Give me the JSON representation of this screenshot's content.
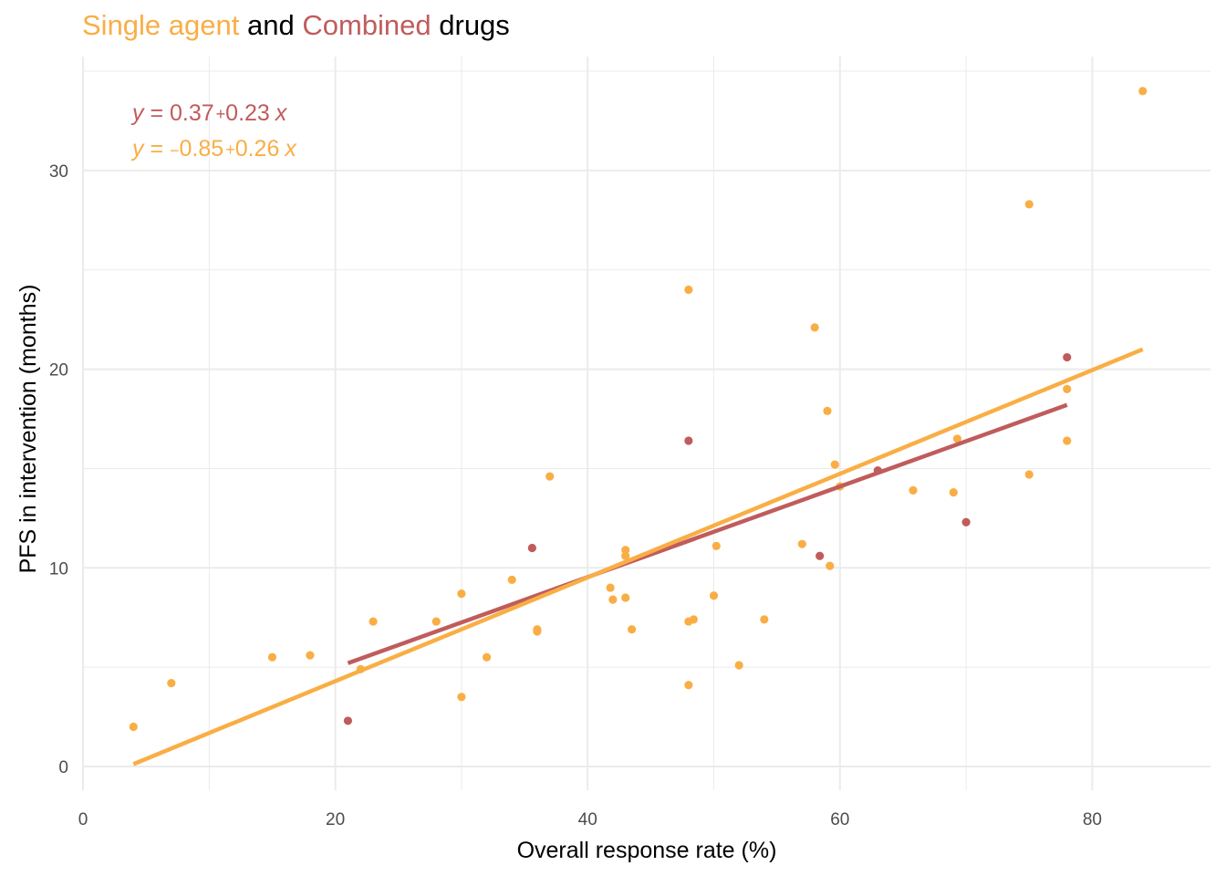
{
  "title": {
    "part1": "Single agent",
    "part2": " and ",
    "part3": "Combined",
    "part4": " drugs"
  },
  "colors": {
    "single": "#F9AE45",
    "combined": "#C05C5C",
    "grid": "#EBEBEB",
    "tick_text": "#4D4D4D"
  },
  "chart_data": {
    "type": "scatter",
    "xlabel": "Overall response rate (%)",
    "ylabel": "PFS in intervention (months)",
    "xlim": [
      0,
      88
    ],
    "ylim": [
      -1,
      35
    ],
    "x_ticks": [
      0,
      20,
      40,
      60,
      80
    ],
    "y_ticks": [
      0,
      10,
      20,
      30
    ],
    "grid": true,
    "legend": "none",
    "series": [
      {
        "name": "Single agent",
        "color": "#F9AE45",
        "points": [
          [
            4,
            2.0
          ],
          [
            7,
            4.2
          ],
          [
            15,
            5.5
          ],
          [
            18,
            5.6
          ],
          [
            22,
            4.9
          ],
          [
            23,
            7.3
          ],
          [
            28,
            7.3
          ],
          [
            30,
            8.7
          ],
          [
            30,
            3.5
          ],
          [
            32,
            5.5
          ],
          [
            34,
            9.4
          ],
          [
            36,
            6.8
          ],
          [
            36,
            6.9
          ],
          [
            37,
            14.6
          ],
          [
            41.8,
            9.0
          ],
          [
            42,
            8.4
          ],
          [
            43,
            8.5
          ],
          [
            43,
            10.6
          ],
          [
            43,
            10.9
          ],
          [
            43.5,
            6.9
          ],
          [
            48,
            24.0
          ],
          [
            48,
            7.3
          ],
          [
            48,
            4.1
          ],
          [
            48.4,
            7.4
          ],
          [
            50,
            8.6
          ],
          [
            50.2,
            11.1
          ],
          [
            52,
            5.1
          ],
          [
            54,
            7.4
          ],
          [
            57,
            11.2
          ],
          [
            58,
            22.1
          ],
          [
            59,
            17.9
          ],
          [
            59.2,
            10.1
          ],
          [
            59.6,
            15.2
          ],
          [
            60,
            14.1
          ],
          [
            65.8,
            13.9
          ],
          [
            69,
            13.8
          ],
          [
            69.3,
            16.5
          ],
          [
            75,
            28.3
          ],
          [
            75,
            14.7
          ],
          [
            78,
            19.0
          ],
          [
            78,
            16.4
          ],
          [
            84,
            34.0
          ]
        ]
      },
      {
        "name": "Combined",
        "color": "#C05C5C",
        "points": [
          [
            21,
            2.3
          ],
          [
            35.6,
            11.0
          ],
          [
            48,
            16.4
          ],
          [
            58.4,
            10.6
          ],
          [
            63,
            14.9
          ],
          [
            70,
            12.3
          ],
          [
            78,
            20.6
          ]
        ]
      }
    ],
    "fits": [
      {
        "name": "Combined",
        "color": "#C05C5C",
        "intercept": 0.37,
        "slope": 0.23,
        "x_range": [
          21,
          78
        ],
        "y_range": [
          5.2,
          18.2
        ],
        "equation": {
          "y": "y",
          "eq": " = 0.37",
          "plus": "+",
          "slope": "0.23",
          "x": "x"
        }
      },
      {
        "name": "Single agent",
        "color": "#F9AE45",
        "intercept": -0.85,
        "slope": 0.26,
        "x_range": [
          4,
          84
        ],
        "y_range": [
          0.12,
          21.0
        ],
        "equation": {
          "y": "y",
          "eq": " = ",
          "minus": "−",
          "intercept": "0.85",
          "plus": "+",
          "slope": "0.26",
          "x": "x"
        }
      }
    ]
  }
}
